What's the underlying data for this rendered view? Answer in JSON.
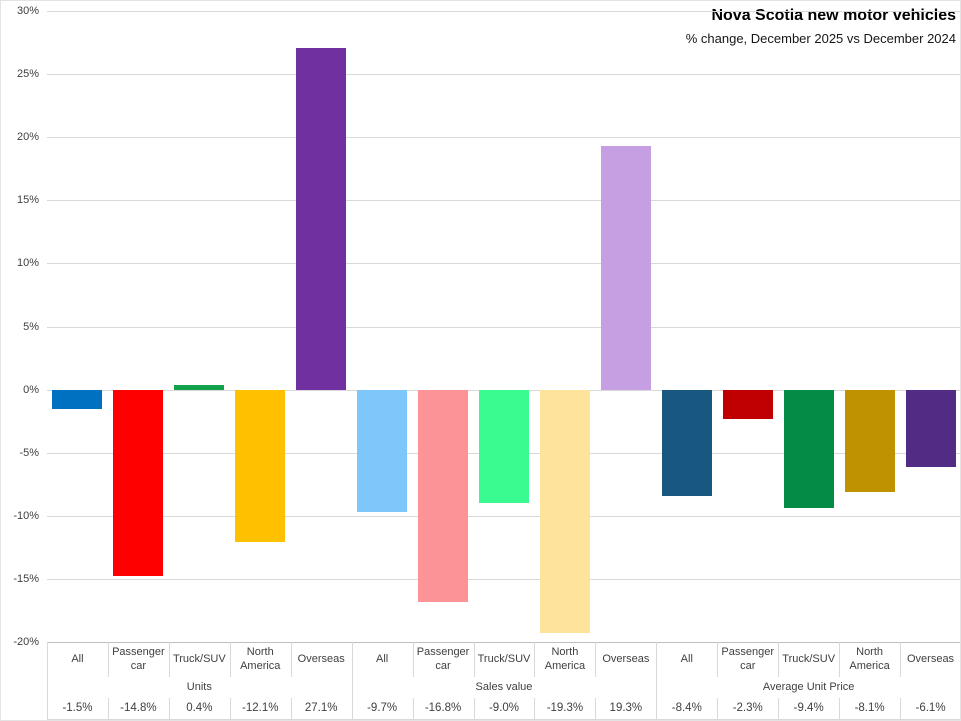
{
  "header": {
    "title": "Nova Scotia new motor vehicles",
    "subtitle": "% change, December 2025 vs December 2024"
  },
  "chart_data": {
    "type": "bar",
    "title": "Nova Scotia new motor vehicles",
    "subtitle": "% change, December 2025 vs December 2024",
    "ylabel": "% change",
    "ylim": [
      -20,
      30
    ],
    "ytick_step": 5,
    "ytick_suffix": "%",
    "grid": true,
    "legend": false,
    "layout": "three groups of five bars, single series, data table below axis",
    "groups": [
      {
        "label": "Units",
        "categories": [
          "All",
          "Passenger car",
          "Truck/SUV",
          "North America",
          "Overseas"
        ],
        "values": [
          -1.5,
          -14.8,
          0.4,
          -12.1,
          27.1
        ],
        "value_labels": [
          "-1.5%",
          "-14.8%",
          "0.4%",
          "-12.1%",
          "27.1%"
        ],
        "colors": [
          "#0070C0",
          "#FE0000",
          "#12A24B",
          "#FFC000",
          "#7030A0"
        ]
      },
      {
        "label": "Sales value",
        "categories": [
          "All",
          "Passenger car",
          "Truck/SUV",
          "North America",
          "Overseas"
        ],
        "values": [
          -9.7,
          -16.8,
          -9.0,
          -19.3,
          19.3
        ],
        "value_labels": [
          "-9.7%",
          "-16.8%",
          "-9.0%",
          "-19.3%",
          "19.3%"
        ],
        "colors": [
          "#7EC7FA",
          "#FC9396",
          "#3AFB8F",
          "#FDE49A",
          "#C59FE2"
        ]
      },
      {
        "label": "Average Unit Price",
        "categories": [
          "All",
          "Passenger car",
          "Truck/SUV",
          "North America",
          "Overseas"
        ],
        "values": [
          -8.4,
          -2.3,
          -9.4,
          -8.1,
          -6.1
        ],
        "value_labels": [
          "-8.4%",
          "-2.3%",
          "-9.4%",
          "-8.1%",
          "-6.1%"
        ],
        "colors": [
          "#185780",
          "#C00000",
          "#048B45",
          "#BF9202",
          "#522B85"
        ]
      }
    ],
    "colors": {
      "gridline": "#D9D9D9",
      "axis_line": "#BFBFBF",
      "text": "#404040",
      "title": "#000000",
      "background": "#FFFFFF"
    }
  }
}
